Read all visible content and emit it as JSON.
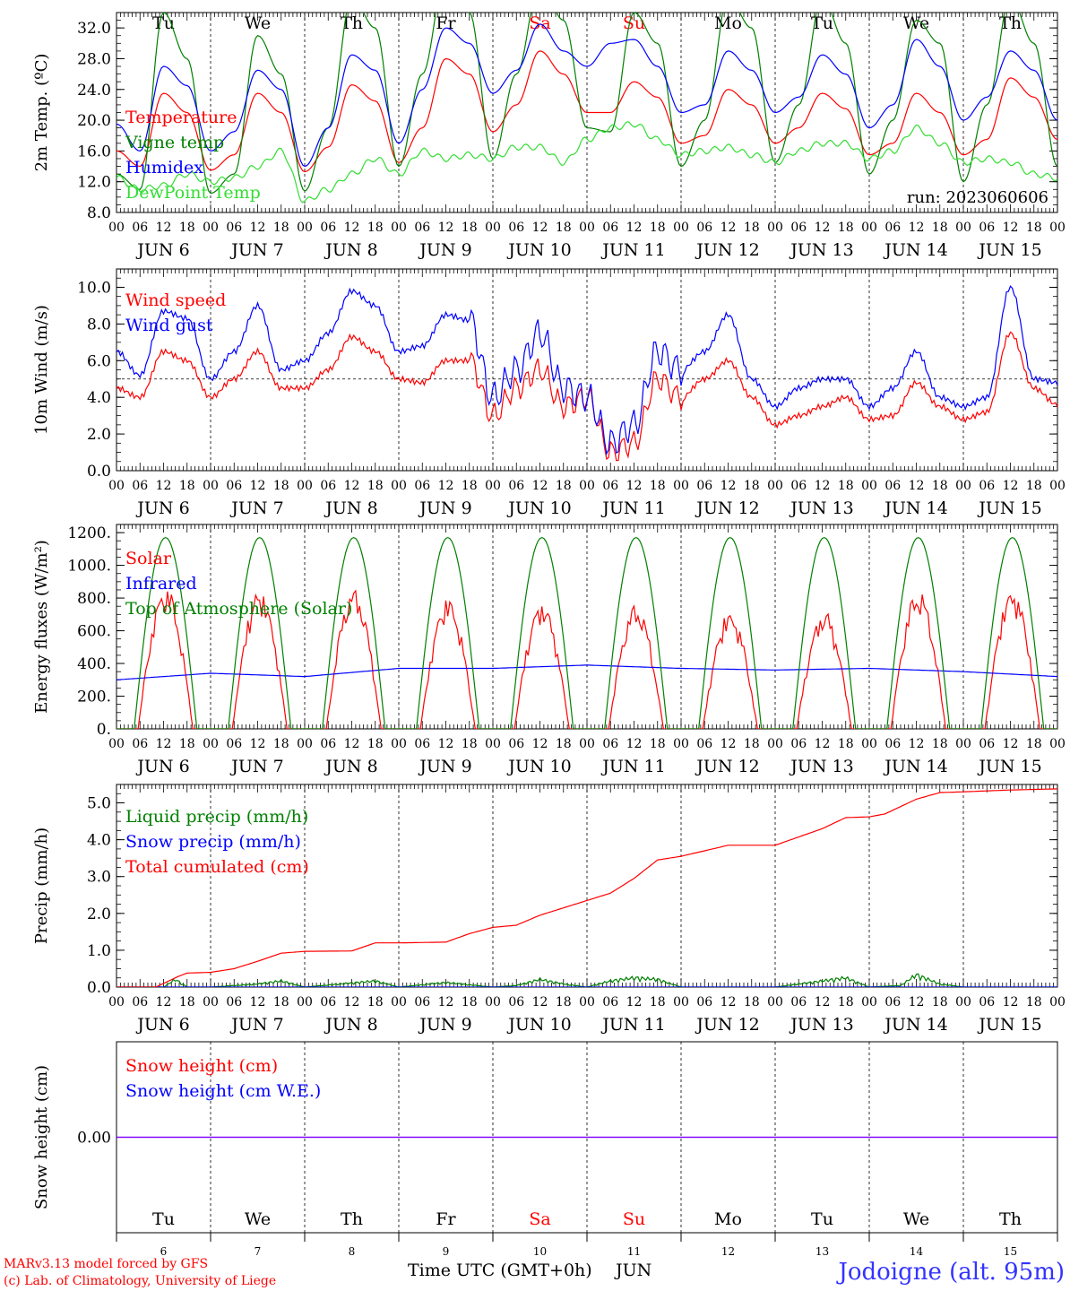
{
  "run_label": "run: 2023060606",
  "footer": {
    "credit_1": "MARv3.13 model forced by GFS",
    "credit_2": "(c) Lab. of Climatology, University of Liege",
    "xaxis_label": "Time UTC (GMT+0h)",
    "month": "JUN",
    "station": "Jodoigne (alt. 95m)"
  },
  "days": [
    {
      "date": "6",
      "label": "JUN  6",
      "weekday": "Tu",
      "weekend": false
    },
    {
      "date": "7",
      "label": "JUN  7",
      "weekday": "We",
      "weekend": false
    },
    {
      "date": "8",
      "label": "JUN  8",
      "weekday": "Th",
      "weekend": false
    },
    {
      "date": "9",
      "label": "JUN  9",
      "weekday": "Fr",
      "weekend": false
    },
    {
      "date": "10",
      "label": "JUN 10",
      "weekday": "Sa",
      "weekend": true
    },
    {
      "date": "11",
      "label": "JUN 11",
      "weekday": "Su",
      "weekend": true
    },
    {
      "date": "12",
      "label": "JUN 12",
      "weekday": "Mo",
      "weekend": false
    },
    {
      "date": "13",
      "label": "JUN 13",
      "weekday": "Tu",
      "weekend": false
    },
    {
      "date": "14",
      "label": "JUN 14",
      "weekday": "We",
      "weekend": false
    },
    {
      "date": "15",
      "label": "JUN 15",
      "weekday": "Th",
      "weekend": false
    }
  ],
  "hour_ticks": [
    "00",
    "06",
    "12",
    "18"
  ],
  "end_hour_tick": "00",
  "colors": {
    "red": "#ff0000",
    "blue": "#0000ff",
    "green": "#008000",
    "lightgreen": "#33dd33",
    "purple": "#7f00ff"
  },
  "chart_data": [
    {
      "type": "line",
      "id": "temp",
      "ylabel": "2m Temp. (ºC)",
      "ylim": [
        8,
        34
      ],
      "yticks": [
        "8.0",
        "12.0",
        "16.0",
        "20.0",
        "24.0",
        "28.0",
        "32.0"
      ],
      "ytick_values": [
        8,
        12,
        16,
        20,
        24,
        28,
        32
      ],
      "x_unit": "hours since JUN 6 00 UTC",
      "series": [
        {
          "name": "Temperature",
          "color": "#ff0000",
          "x": [
            0,
            6,
            12,
            18,
            24,
            30,
            36,
            42,
            48,
            54,
            60,
            66,
            72,
            78,
            84,
            90,
            96,
            102,
            108,
            114,
            120,
            126,
            132,
            138,
            144,
            150,
            156,
            162,
            168,
            174,
            180,
            186,
            192,
            198,
            204,
            210,
            216,
            222,
            228,
            234,
            240
          ],
          "y": [
            16.0,
            14.0,
            23.5,
            21.0,
            13.5,
            15.5,
            23.5,
            21.0,
            13.3,
            16.5,
            24.6,
            22.5,
            14.5,
            19.0,
            28.0,
            26.0,
            18.5,
            22.0,
            29.0,
            26.0,
            21.0,
            21.0,
            25.0,
            23.0,
            17.0,
            18.0,
            24.0,
            22.0,
            17.0,
            19.0,
            23.5,
            21.5,
            15.5,
            17.0,
            23.5,
            21.0,
            15.5,
            17.5,
            25.5,
            23.0,
            17.5
          ]
        },
        {
          "name": "Vigne temp",
          "color": "#008000",
          "x": [
            0,
            6,
            12,
            18,
            24,
            30,
            36,
            42,
            48,
            54,
            60,
            66,
            72,
            78,
            84,
            90,
            96,
            102,
            108,
            114,
            120,
            126,
            132,
            138,
            144,
            150,
            156,
            162,
            168,
            174,
            180,
            186,
            192,
            198,
            204,
            210,
            216,
            222,
            228,
            234,
            240
          ],
          "y": [
            13.0,
            11.0,
            34.0,
            28.0,
            10.5,
            13.0,
            31.0,
            26.0,
            10.8,
            19.0,
            36.0,
            32.0,
            14.0,
            26.0,
            39.0,
            34.0,
            15.0,
            26.0,
            38.0,
            33.0,
            19.0,
            18.5,
            34.0,
            30.0,
            14.0,
            20.0,
            36.0,
            32.0,
            14.5,
            22.0,
            36.0,
            30.0,
            13.0,
            20.0,
            33.0,
            30.0,
            12.0,
            22.0,
            36.0,
            30.0,
            14.0
          ]
        },
        {
          "name": "Humidex",
          "color": "#0000ff",
          "x": [
            0,
            6,
            12,
            18,
            24,
            30,
            36,
            42,
            48,
            54,
            60,
            66,
            72,
            78,
            84,
            90,
            96,
            102,
            108,
            114,
            120,
            126,
            132,
            138,
            144,
            150,
            156,
            162,
            168,
            174,
            180,
            186,
            192,
            198,
            204,
            210,
            216,
            222,
            228,
            234,
            240
          ],
          "y": [
            19.5,
            16.0,
            27.0,
            24.5,
            16.0,
            18.5,
            26.5,
            24.0,
            14.0,
            19.0,
            28.5,
            26.5,
            17.0,
            24.0,
            32.0,
            30.0,
            23.5,
            26.5,
            32.5,
            29.0,
            27.0,
            30.0,
            30.5,
            27.0,
            21.0,
            22.0,
            29.0,
            26.5,
            21.0,
            23.0,
            28.5,
            26.0,
            19.0,
            22.0,
            30.5,
            27.0,
            20.0,
            23.0,
            29.0,
            26.5,
            20.0
          ]
        },
        {
          "name": "DewPoint Temp",
          "color": "#33dd33",
          "x": [
            0,
            6,
            12,
            18,
            24,
            30,
            36,
            42,
            48,
            54,
            60,
            66,
            72,
            78,
            84,
            90,
            96,
            102,
            108,
            114,
            120,
            126,
            132,
            138,
            144,
            150,
            156,
            162,
            168,
            174,
            180,
            186,
            192,
            198,
            204,
            210,
            216,
            222,
            228,
            234,
            240
          ],
          "y": [
            12.5,
            11.0,
            11.5,
            13.0,
            12.0,
            12.5,
            14.0,
            16.0,
            9.5,
            11.0,
            13.0,
            15.0,
            13.0,
            16.0,
            15.0,
            15.5,
            15.0,
            16.5,
            16.5,
            14.5,
            17.5,
            19.0,
            19.5,
            17.5,
            15.5,
            16.0,
            16.5,
            15.5,
            14.5,
            16.0,
            17.0,
            17.0,
            15.0,
            16.0,
            19.0,
            17.0,
            14.5,
            15.0,
            14.5,
            13.0,
            12.5
          ]
        }
      ]
    },
    {
      "type": "line",
      "id": "wind",
      "ylabel": "10m Wind (m/s)",
      "ylim": [
        0,
        11
      ],
      "yticks": [
        "0.0",
        "2.0",
        "4.0",
        "6.0",
        "8.0",
        "10.0"
      ],
      "ytick_values": [
        0,
        2,
        4,
        6,
        8,
        10
      ],
      "reference_line": 5,
      "x_unit": "hours since JUN 6 00 UTC",
      "series": [
        {
          "name": "Wind speed",
          "color": "#ff0000",
          "x": [
            0,
            6,
            12,
            18,
            24,
            30,
            36,
            42,
            48,
            54,
            60,
            66,
            72,
            78,
            84,
            90,
            96,
            102,
            108,
            114,
            120,
            126,
            132,
            138,
            144,
            150,
            156,
            162,
            168,
            174,
            180,
            186,
            192,
            198,
            204,
            210,
            216,
            222,
            228,
            234,
            240
          ],
          "y": [
            4.5,
            4.0,
            6.5,
            6.0,
            4.0,
            5.0,
            6.5,
            4.5,
            4.5,
            5.5,
            7.3,
            6.5,
            5.0,
            4.8,
            6.0,
            6.0,
            3.0,
            4.5,
            5.5,
            3.5,
            4.0,
            1.0,
            1.5,
            5.0,
            4.0,
            5.0,
            6.0,
            4.0,
            2.5,
            3.0,
            3.5,
            4.0,
            2.8,
            3.0,
            4.8,
            3.5,
            2.8,
            3.2,
            7.5,
            4.5,
            3.6
          ]
        },
        {
          "name": "Wind gust",
          "color": "#0000ff",
          "x": [
            0,
            6,
            12,
            18,
            24,
            30,
            36,
            42,
            48,
            54,
            60,
            66,
            72,
            78,
            84,
            90,
            96,
            102,
            108,
            114,
            120,
            126,
            132,
            138,
            144,
            150,
            156,
            162,
            168,
            174,
            180,
            186,
            192,
            198,
            204,
            210,
            216,
            222,
            228,
            234,
            240
          ],
          "y": [
            6.5,
            5.2,
            8.7,
            8.3,
            5.0,
            6.5,
            9.0,
            5.5,
            6.0,
            7.5,
            9.8,
            9.0,
            6.5,
            6.8,
            8.5,
            8.2,
            4.0,
            5.5,
            7.5,
            4.5,
            4.0,
            1.5,
            2.5,
            6.5,
            5.5,
            6.5,
            8.5,
            5.0,
            3.5,
            4.5,
            5.0,
            5.0,
            3.5,
            4.5,
            6.5,
            4.0,
            3.5,
            4.0,
            10.0,
            5.0,
            4.8
          ]
        }
      ]
    },
    {
      "type": "line",
      "id": "energy",
      "ylabel": "Energy fluxes (W/m²)",
      "ylim": [
        0,
        1250
      ],
      "yticks": [
        "0.",
        "200.",
        "400.",
        "600.",
        "800.",
        "1000.",
        "1200."
      ],
      "ytick_values": [
        0,
        200,
        400,
        600,
        800,
        1000,
        1200
      ],
      "x_unit": "hours since JUN 6 00 UTC",
      "series": [
        {
          "name": "Solar",
          "color": "#ff0000",
          "daily_peak_hour": 12.5,
          "daily_peak": [
            870,
            850,
            860,
            800,
            780,
            760,
            720,
            720,
            850,
            860
          ]
        },
        {
          "name": "Infrared",
          "color": "#0000ff",
          "x": [
            0,
            24,
            48,
            72,
            96,
            120,
            144,
            168,
            192,
            216,
            240
          ],
          "y": [
            300,
            340,
            320,
            370,
            370,
            390,
            370,
            360,
            370,
            350,
            320
          ]
        },
        {
          "name": "Top of Atmosphere (Solar)",
          "color": "#008000",
          "daily_peak_hour": 12.5,
          "daily_peak": [
            1170,
            1170,
            1170,
            1170,
            1170,
            1170,
            1170,
            1170,
            1170,
            1170
          ]
        }
      ]
    },
    {
      "type": "line",
      "id": "precip",
      "ylabel": "Precip (mm/h)",
      "ylim": [
        0,
        5.5
      ],
      "yticks": [
        "0.0",
        "1.0",
        "2.0",
        "3.0",
        "4.0",
        "5.0"
      ],
      "ytick_values": [
        0,
        1,
        2,
        3,
        4,
        5
      ],
      "x_unit": "hours since JUN 6 00 UTC",
      "series": [
        {
          "name": "Liquid precip (mm/h)",
          "color": "#008000",
          "x": [
            0,
            12,
            15,
            18,
            24,
            36,
            42,
            48,
            66,
            72,
            84,
            96,
            102,
            108,
            114,
            120,
            126,
            132,
            138,
            144,
            168,
            180,
            186,
            192,
            200,
            204,
            210,
            216,
            240
          ],
          "y": [
            0,
            0,
            0.25,
            0,
            0,
            0.1,
            0.2,
            0,
            0.2,
            0,
            0.15,
            0,
            0.05,
            0.25,
            0.1,
            0,
            0.2,
            0.3,
            0.25,
            0,
            0,
            0.2,
            0.3,
            0,
            0.05,
            0.4,
            0.1,
            0,
            0
          ]
        },
        {
          "name": "Snow precip (mm/h)",
          "color": "#0000ff",
          "x": [
            0,
            240
          ],
          "y": [
            0,
            0
          ]
        },
        {
          "name": "Total cumulated (cm)",
          "color": "#ff0000",
          "x": [
            0,
            10,
            16,
            18,
            24,
            30,
            36,
            42,
            48,
            60,
            66,
            72,
            84,
            90,
            96,
            102,
            108,
            114,
            120,
            126,
            132,
            138,
            144,
            150,
            156,
            162,
            168,
            180,
            186,
            192,
            196,
            204,
            210,
            216,
            228,
            240
          ],
          "y": [
            0,
            0,
            0.3,
            0.38,
            0.4,
            0.5,
            0.7,
            0.92,
            0.97,
            0.98,
            1.2,
            1.2,
            1.22,
            1.45,
            1.62,
            1.68,
            1.95,
            2.15,
            2.35,
            2.55,
            2.95,
            3.45,
            3.55,
            3.7,
            3.85,
            3.85,
            3.85,
            4.3,
            4.6,
            4.62,
            4.7,
            5.1,
            5.28,
            5.3,
            5.35,
            5.38
          ]
        }
      ]
    },
    {
      "type": "line",
      "id": "snow",
      "ylabel": "Snow height (cm)",
      "ylim": [
        -1,
        1
      ],
      "yticks": [
        "0.00"
      ],
      "ytick_values": [
        0
      ],
      "x_unit": "hours since JUN 6 00 UTC",
      "series": [
        {
          "name": "Snow height (cm)",
          "color": "#ff0000",
          "x": [
            0,
            240
          ],
          "y": [
            0,
            0
          ]
        },
        {
          "name": "Snow height (cm W.E.)",
          "color": "#0000ff",
          "x": [
            0,
            240
          ],
          "y": [
            0,
            0
          ]
        }
      ]
    }
  ]
}
